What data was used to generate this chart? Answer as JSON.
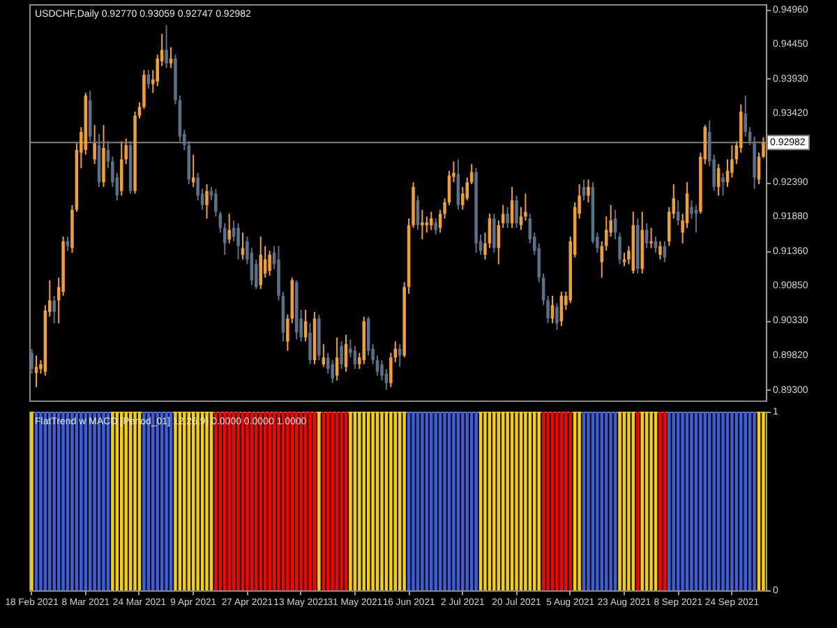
{
  "chart_data": [
    {
      "type": "candlestick",
      "title": "USDCHF,Daily  0.92770 0.93059 0.92747 0.92982",
      "categories": [
        null,
        null,
        null,
        null,
        null,
        null,
        null,
        null,
        null,
        null,
        null,
        null,
        null,
        null,
        null,
        null,
        null,
        null,
        null,
        null,
        null,
        null,
        null,
        null,
        null,
        null,
        null,
        null,
        null,
        null,
        null,
        null,
        null,
        null,
        null,
        null,
        null,
        null,
        null,
        null,
        null,
        null,
        null,
        null,
        null,
        null,
        null,
        null,
        null,
        null,
        null,
        null,
        null,
        null,
        null,
        null,
        null,
        null,
        null,
        null,
        null,
        null,
        null,
        null,
        null,
        null,
        null,
        null,
        null,
        null,
        null,
        null,
        null,
        null,
        null,
        null,
        null,
        null,
        null,
        null,
        null,
        null,
        null,
        null,
        null,
        null,
        null,
        null,
        null,
        null,
        null,
        null,
        null,
        null,
        null,
        null,
        null,
        null,
        null,
        null,
        null,
        null,
        null,
        null,
        null,
        null,
        null,
        null,
        null,
        null,
        null,
        null,
        null,
        null,
        null,
        null,
        null,
        null,
        null,
        null,
        null,
        null,
        null,
        null,
        null,
        null,
        null,
        null,
        null,
        null,
        null,
        null,
        null,
        null,
        null,
        null,
        null,
        null,
        null,
        null,
        null,
        null,
        null,
        null,
        null,
        null,
        null,
        null,
        null,
        null,
        null,
        null,
        null,
        null,
        null,
        null,
        null,
        null,
        null,
        null,
        null,
        null,
        null,
        null
      ],
      "ohlc": [
        [
          0.8985,
          0.8991,
          0.8954,
          0.8961
        ],
        [
          0.8955,
          0.8981,
          0.8934,
          0.8964
        ],
        [
          0.8961,
          0.8974,
          0.8954,
          0.8968
        ],
        [
          0.8957,
          0.9056,
          0.8951,
          0.9048
        ],
        [
          0.9046,
          0.9093,
          0.9039,
          0.9063
        ],
        [
          0.9063,
          0.907,
          0.9029,
          0.9046
        ],
        [
          0.9063,
          0.9097,
          0.9029,
          0.9083
        ],
        [
          0.9076,
          0.9158,
          0.907,
          0.9151
        ],
        [
          0.9151,
          0.9158,
          0.9137,
          0.9144
        ],
        [
          0.9141,
          0.9205,
          0.9134,
          0.9198
        ],
        [
          0.9198,
          0.9297,
          0.9195,
          0.9287
        ],
        [
          0.9283,
          0.9321,
          0.926,
          0.9314
        ],
        [
          0.9287,
          0.9372,
          0.928,
          0.9368
        ],
        [
          0.9361,
          0.9375,
          0.93,
          0.9307
        ],
        [
          0.9273,
          0.9324,
          0.9266,
          0.9297
        ],
        [
          0.9294,
          0.9311,
          0.9232,
          0.9239
        ],
        [
          0.9239,
          0.9324,
          0.9232,
          0.929
        ],
        [
          0.9287,
          0.93,
          0.926,
          0.927
        ],
        [
          0.927,
          0.9277,
          0.9232,
          0.9239
        ],
        [
          0.9246,
          0.9253,
          0.9212,
          0.9219
        ],
        [
          0.9226,
          0.93,
          0.9219,
          0.9273
        ],
        [
          0.9273,
          0.9304,
          0.9266,
          0.9294
        ],
        [
          0.9294,
          0.93,
          0.9222,
          0.9226
        ],
        [
          0.9226,
          0.9344,
          0.9222,
          0.9338
        ],
        [
          0.9338,
          0.9358,
          0.9334,
          0.9351
        ],
        [
          0.9351,
          0.9406,
          0.9348,
          0.9399
        ],
        [
          0.9399,
          0.9406,
          0.9378,
          0.9385
        ],
        [
          0.9385,
          0.9406,
          0.9372,
          0.9392
        ],
        [
          0.9389,
          0.9429,
          0.9382,
          0.9423
        ],
        [
          0.9419,
          0.946,
          0.9412,
          0.9436
        ],
        [
          0.9436,
          0.9473,
          0.9409,
          0.9416
        ],
        [
          0.9416,
          0.944,
          0.9409,
          0.9423
        ],
        [
          0.9423,
          0.9429,
          0.9355,
          0.9361
        ],
        [
          0.9361,
          0.9368,
          0.93,
          0.9307
        ],
        [
          0.9311,
          0.9317,
          0.9287,
          0.9294
        ],
        [
          0.9294,
          0.93,
          0.9236,
          0.9243
        ],
        [
          0.9239,
          0.928,
          0.9232,
          0.9246
        ],
        [
          0.9246,
          0.9253,
          0.9212,
          0.9219
        ],
        [
          0.9222,
          0.9229,
          0.9198,
          0.9205
        ],
        [
          0.9205,
          0.9236,
          0.9185,
          0.9226
        ],
        [
          0.9226,
          0.9232,
          0.9212,
          0.9219
        ],
        [
          0.9222,
          0.9229,
          0.9188,
          0.9195
        ],
        [
          0.9192,
          0.9195,
          0.9164,
          0.9171
        ],
        [
          0.9171,
          0.9178,
          0.9131,
          0.9148
        ],
        [
          0.9154,
          0.9192,
          0.9148,
          0.9168
        ],
        [
          0.9171,
          0.9182,
          0.9151,
          0.9158
        ],
        [
          0.9171,
          0.9178,
          0.9124,
          0.9144
        ],
        [
          0.9131,
          0.9164,
          0.9124,
          0.9141
        ],
        [
          0.9151,
          0.9158,
          0.9117,
          0.9124
        ],
        [
          0.9134,
          0.9141,
          0.9086,
          0.9093
        ],
        [
          0.9117,
          0.9124,
          0.908,
          0.9083
        ],
        [
          0.9086,
          0.9158,
          0.908,
          0.9131
        ],
        [
          0.9103,
          0.9144,
          0.9097,
          0.9124
        ],
        [
          0.9107,
          0.9137,
          0.91,
          0.9131
        ],
        [
          0.9134,
          0.9144,
          0.911,
          0.9117
        ],
        [
          0.9124,
          0.9144,
          0.9063,
          0.907
        ],
        [
          0.907,
          0.9076,
          0.9002,
          0.9015
        ],
        [
          0.9002,
          0.9042,
          0.8988,
          0.9036
        ],
        [
          0.9036,
          0.9097,
          0.9029,
          0.9093
        ],
        [
          0.909,
          0.9093,
          0.9005,
          0.9015
        ],
        [
          0.9036,
          0.9049,
          0.9002,
          0.9008
        ],
        [
          0.9008,
          0.9049,
          0.9002,
          0.9032
        ],
        [
          0.9015,
          0.9029,
          0.8968,
          0.8974
        ],
        [
          0.8974,
          0.9046,
          0.8968,
          0.9036
        ],
        [
          0.9036,
          0.9042,
          0.8974,
          0.8981
        ],
        [
          0.8968,
          0.8998,
          0.8964,
          0.8978
        ],
        [
          0.8978,
          0.8985,
          0.8954,
          0.8961
        ],
        [
          0.8968,
          0.8974,
          0.894,
          0.8947
        ],
        [
          0.8951,
          0.9008,
          0.8944,
          0.8978
        ],
        [
          0.8995,
          0.9002,
          0.8961,
          0.8968
        ],
        [
          0.8964,
          0.9012,
          0.8957,
          0.8998
        ],
        [
          0.8991,
          0.9005,
          0.8978,
          0.8985
        ],
        [
          0.8988,
          0.8995,
          0.8961,
          0.8968
        ],
        [
          0.8968,
          0.8985,
          0.8961,
          0.8978
        ],
        [
          0.8974,
          0.9039,
          0.8968,
          0.9032
        ],
        [
          0.9036,
          0.9039,
          0.8981,
          0.8988
        ],
        [
          0.8991,
          0.8998,
          0.8968,
          0.8974
        ],
        [
          0.8974,
          0.8981,
          0.8951,
          0.8957
        ],
        [
          0.8968,
          0.8974,
          0.8944,
          0.8951
        ],
        [
          0.8954,
          0.8961,
          0.893,
          0.894
        ],
        [
          0.894,
          0.8985,
          0.8934,
          0.8978
        ],
        [
          0.8978,
          0.9002,
          0.8971,
          0.8991
        ],
        [
          0.8991,
          0.8998,
          0.8964,
          0.8981
        ],
        [
          0.8981,
          0.909,
          0.8978,
          0.9083
        ],
        [
          0.9083,
          0.9185,
          0.9073,
          0.9175
        ],
        [
          0.9175,
          0.9239,
          0.9171,
          0.9232
        ],
        [
          0.9212,
          0.9219,
          0.9168,
          0.9175
        ],
        [
          0.9175,
          0.9198,
          0.9154,
          0.9179
        ],
        [
          0.9175,
          0.9188,
          0.9164,
          0.9179
        ],
        [
          0.9175,
          0.9195,
          0.9168,
          0.9185
        ],
        [
          0.9179,
          0.9185,
          0.9161,
          0.9168
        ],
        [
          0.9171,
          0.9198,
          0.9164,
          0.9192
        ],
        [
          0.9192,
          0.9215,
          0.9185,
          0.9209
        ],
        [
          0.9209,
          0.9256,
          0.9205,
          0.9249
        ],
        [
          0.9247,
          0.927,
          0.9239,
          0.9253
        ],
        [
          0.9251,
          0.9273,
          0.9198,
          0.9205
        ],
        [
          0.9205,
          0.9232,
          0.9198,
          0.9222
        ],
        [
          0.9215,
          0.9246,
          0.9212,
          0.9239
        ],
        [
          0.9239,
          0.9266,
          0.9236,
          0.9254
        ],
        [
          0.9254,
          0.926,
          0.9134,
          0.9148
        ],
        [
          0.9151,
          0.9161,
          0.9131,
          0.9137
        ],
        [
          0.9131,
          0.9164,
          0.9124,
          0.9148
        ],
        [
          0.9148,
          0.9192,
          0.9141,
          0.9185
        ],
        [
          0.9185,
          0.9192,
          0.9134,
          0.9141
        ],
        [
          0.9141,
          0.9182,
          0.9117,
          0.9175
        ],
        [
          0.9178,
          0.9205,
          0.9171,
          0.9192
        ],
        [
          0.9192,
          0.9202,
          0.9171,
          0.9178
        ],
        [
          0.9178,
          0.9232,
          0.9171,
          0.9212
        ],
        [
          0.9212,
          0.9219,
          0.9171,
          0.9178
        ],
        [
          0.9175,
          0.9202,
          0.9168,
          0.9188
        ],
        [
          0.9188,
          0.9222,
          0.9182,
          0.9195
        ],
        [
          0.9185,
          0.9192,
          0.9148,
          0.9154
        ],
        [
          0.9158,
          0.9164,
          0.9131,
          0.9137
        ],
        [
          0.9141,
          0.9148,
          0.909,
          0.9097
        ],
        [
          0.9097,
          0.9103,
          0.9056,
          0.9063
        ],
        [
          0.9063,
          0.907,
          0.9029,
          0.9036
        ],
        [
          0.9036,
          0.907,
          0.9029,
          0.9056
        ],
        [
          0.9053,
          0.9059,
          0.9019,
          0.9029
        ],
        [
          0.9032,
          0.9076,
          0.9025,
          0.907
        ],
        [
          0.9056,
          0.9076,
          0.9049,
          0.907
        ],
        [
          0.9063,
          0.9158,
          0.9059,
          0.9151
        ],
        [
          0.9131,
          0.9209,
          0.9127,
          0.9202
        ],
        [
          0.9192,
          0.9236,
          0.9185,
          0.9219
        ],
        [
          0.9232,
          0.9243,
          0.9212,
          0.9219
        ],
        [
          0.9219,
          0.9243,
          0.9209,
          0.9232
        ],
        [
          0.9232,
          0.9239,
          0.9148,
          0.9151
        ],
        [
          0.9158,
          0.9164,
          0.9134,
          0.9141
        ],
        [
          0.912,
          0.9151,
          0.9097,
          0.9144
        ],
        [
          0.9144,
          0.9188,
          0.9137,
          0.9168
        ],
        [
          0.9164,
          0.9205,
          0.9158,
          0.9182
        ],
        [
          0.9185,
          0.9198,
          0.9154,
          0.9164
        ],
        [
          0.9158,
          0.9164,
          0.9117,
          0.9124
        ],
        [
          0.912,
          0.9134,
          0.9114,
          0.9124
        ],
        [
          0.9124,
          0.9144,
          0.9117,
          0.9137
        ],
        [
          0.9107,
          0.9195,
          0.9103,
          0.9175
        ],
        [
          0.9175,
          0.9185,
          0.9103,
          0.911
        ],
        [
          0.911,
          0.9195,
          0.9103,
          0.9168
        ],
        [
          0.9168,
          0.9178,
          0.9141,
          0.9148
        ],
        [
          0.9148,
          0.9171,
          0.9141,
          0.9151
        ],
        [
          0.9151,
          0.9158,
          0.9134,
          0.9141
        ],
        [
          0.9131,
          0.9151,
          0.9124,
          0.9144
        ],
        [
          0.9144,
          0.9151,
          0.912,
          0.9127
        ],
        [
          0.9151,
          0.9202,
          0.9144,
          0.9195
        ],
        [
          0.9192,
          0.9236,
          0.9185,
          0.9215
        ],
        [
          0.9195,
          0.9212,
          0.9175,
          0.9182
        ],
        [
          0.9164,
          0.9192,
          0.9148,
          0.9182
        ],
        [
          0.9178,
          0.9239,
          0.9171,
          0.9222
        ],
        [
          0.9202,
          0.9212,
          0.9185,
          0.9192
        ],
        [
          0.9198,
          0.9205,
          0.9164,
          0.9192
        ],
        [
          0.9195,
          0.9283,
          0.9192,
          0.9277
        ],
        [
          0.9273,
          0.9324,
          0.9266,
          0.9321
        ],
        [
          0.9314,
          0.9331,
          0.9263,
          0.927
        ],
        [
          0.9273,
          0.928,
          0.9226,
          0.9232
        ],
        [
          0.9232,
          0.9266,
          0.9219,
          0.926
        ],
        [
          0.9246,
          0.9253,
          0.9219,
          0.9239
        ],
        [
          0.9239,
          0.9273,
          0.9232,
          0.9256
        ],
        [
          0.9253,
          0.9294,
          0.9246,
          0.9273
        ],
        [
          0.9273,
          0.93,
          0.9266,
          0.9294
        ],
        [
          0.929,
          0.9355,
          0.9283,
          0.9344
        ],
        [
          0.9341,
          0.9368,
          0.9307,
          0.9314
        ],
        [
          0.9314,
          0.9321,
          0.9294,
          0.93
        ],
        [
          0.93,
          0.9307,
          0.9229,
          0.9246
        ],
        [
          0.9243,
          0.9283,
          0.9236,
          0.9277
        ],
        [
          0.9277,
          0.9306,
          0.9275,
          0.9298
        ]
      ],
      "colors": [
        "#5b7089",
        "#f0a030",
        "#f0a030",
        "#f0a030",
        "#f0a030",
        "#5b7089",
        "#f0a030",
        "#f0a030",
        "#5b7089",
        "#f0a030",
        "#f0a030",
        "#f0a030",
        "#f0a030",
        "#5b7089",
        "#f0a030",
        "#5b7089",
        "#f0a030",
        "#5b7089",
        "#5b7089",
        "#5b7089",
        "#f0a030",
        "#f0a030",
        "#5b7089",
        "#f0a030",
        "#f0a030",
        "#f0a030",
        "#5b7089",
        "#f0a030",
        "#f0a030",
        "#f0a030",
        "#5b7089",
        "#f0a030",
        "#5b7089",
        "#5b7089",
        "#5b7089",
        "#5b7089",
        "#f0a030",
        "#5b7089",
        "#5b7089",
        "#f0a030",
        "#5b7089",
        "#5b7089",
        "#5b7089",
        "#5b7089",
        "#f0a030",
        "#5b7089",
        "#5b7089",
        "#f0a030",
        "#5b7089",
        "#5b7089",
        "#5b7089",
        "#f0a030",
        "#f0a030",
        "#f0a030",
        "#5b7089",
        "#5b7089",
        "#5b7089",
        "#f0a030",
        "#f0a030",
        "#5b7089",
        "#5b7089",
        "#f0a030",
        "#5b7089",
        "#f0a030",
        "#5b7089",
        "#f0a030",
        "#5b7089",
        "#5b7089",
        "#f0a030",
        "#5b7089",
        "#f0a030",
        "#5b7089",
        "#5b7089",
        "#f0a030",
        "#f0a030",
        "#5b7089",
        "#5b7089",
        "#5b7089",
        "#5b7089",
        "#5b7089",
        "#f0a030",
        "#f0a030",
        "#5b7089",
        "#f0a030",
        "#f0a030",
        "#f0a030",
        "#5b7089",
        "#f0a030",
        "#f0a030",
        "#f0a030",
        "#5b7089",
        "#f0a030",
        "#f0a030",
        "#f0a030",
        "#f0a030",
        "#5b7089",
        "#f0a030",
        "#f0a030",
        "#f0a030",
        "#5b7089",
        "#5b7089",
        "#f0a030",
        "#f0a030",
        "#5b7089",
        "#f0a030",
        "#f0a030",
        "#5b7089",
        "#f0a030",
        "#5b7089",
        "#f0a030",
        "#f0a030",
        "#5b7089",
        "#5b7089",
        "#5b7089",
        "#5b7089",
        "#5b7089",
        "#f0a030",
        "#5b7089",
        "#f0a030",
        "#f0a030",
        "#f0a030",
        "#f0a030",
        "#f0a030",
        "#5b7089",
        "#f0a030",
        "#5b7089",
        "#5b7089",
        "#f0a030",
        "#f0a030",
        "#f0a030",
        "#5b7089",
        "#5b7089",
        "#f0a030",
        "#f0a030",
        "#f0a030",
        "#5b7089",
        "#f0a030",
        "#5b7089",
        "#f0a030",
        "#5b7089",
        "#f0a030",
        "#5b7089",
        "#f0a030",
        "#f0a030",
        "#5b7089",
        "#f0a030",
        "#f0a030",
        "#5b7089",
        "#5b7089",
        "#f0a030",
        "#f0a030",
        "#5b7089",
        "#5b7089",
        "#f0a030",
        "#5b7089",
        "#f0a030",
        "#f0a030",
        "#f0a030",
        "#f0a030",
        "#5b7089",
        "#5b7089",
        "#5b7089",
        "#f0a030",
        "#f0a030"
      ],
      "ylim": [
        0.8914,
        0.9504
      ],
      "yticks": [
        {
          "value": 0.893,
          "label": "0.89300"
        },
        {
          "value": 0.8982,
          "label": "0.89820"
        },
        {
          "value": 0.9033,
          "label": "0.90330"
        },
        {
          "value": 0.9085,
          "label": "0.90850"
        },
        {
          "value": 0.9136,
          "label": "0.91360"
        },
        {
          "value": 0.9188,
          "label": "0.91880"
        },
        {
          "value": 0.9239,
          "label": "0.92390"
        },
        {
          "value": 0.9342,
          "label": "0.93420"
        },
        {
          "value": 0.9393,
          "label": "0.93930"
        },
        {
          "value": 0.9445,
          "label": "0.94450"
        },
        {
          "value": 0.9496,
          "label": "0.94960"
        }
      ],
      "ref_lines": [
        {
          "axis": "y",
          "value": 0.92982,
          "label": "0.92982",
          "color": "#7f7f7f"
        }
      ],
      "tick_labels": "y"
    },
    {
      "type": "bar",
      "title": "FlatTrend w MACD [Period_01] 12,26,9) 0.0000 0.0000 1.0000",
      "categories": [
        "18 Feb 2021",
        null,
        null,
        null,
        null,
        null,
        null,
        null,
        null,
        null,
        null,
        null,
        "8 Mar 2021",
        null,
        null,
        null,
        null,
        null,
        null,
        null,
        null,
        null,
        null,
        null,
        "24 Mar 2021",
        null,
        null,
        null,
        null,
        null,
        null,
        null,
        null,
        null,
        null,
        null,
        "9 Apr 2021",
        null,
        null,
        null,
        null,
        null,
        null,
        null,
        null,
        null,
        null,
        null,
        "27 Apr 2021",
        null,
        null,
        null,
        null,
        null,
        null,
        null,
        null,
        null,
        null,
        null,
        "13 May 2021",
        null,
        null,
        null,
        null,
        null,
        null,
        null,
        null,
        null,
        null,
        null,
        "31 May 2021",
        null,
        null,
        null,
        null,
        null,
        null,
        null,
        null,
        null,
        null,
        null,
        "16 Jun 2021",
        null,
        null,
        null,
        null,
        null,
        null,
        null,
        null,
        null,
        null,
        null,
        "2 Jul 2021",
        null,
        null,
        null,
        null,
        null,
        null,
        null,
        null,
        null,
        null,
        null,
        "20 Jul 2021",
        null,
        null,
        null,
        null,
        null,
        null,
        null,
        null,
        null,
        null,
        null,
        "5 Aug 2021",
        null,
        null,
        null,
        null,
        null,
        null,
        null,
        null,
        null,
        null,
        null,
        "23 Aug 2021",
        null,
        null,
        null,
        null,
        null,
        null,
        null,
        null,
        null,
        null,
        null,
        "8 Sep 2021",
        null,
        null,
        null,
        null,
        null,
        null,
        null,
        null,
        null,
        null,
        null,
        "24 Sep 2021",
        null,
        null,
        null,
        null,
        null,
        null,
        null
      ],
      "values": [
        1,
        1,
        1,
        1,
        1,
        1,
        1,
        1,
        1,
        1,
        1,
        1,
        1,
        1,
        1,
        1,
        1,
        1,
        1,
        1,
        1,
        1,
        1,
        1,
        1,
        1,
        1,
        1,
        1,
        1,
        1,
        1,
        1,
        1,
        1,
        1,
        1,
        1,
        1,
        1,
        1,
        1,
        1,
        1,
        1,
        1,
        1,
        1,
        1,
        1,
        1,
        1,
        1,
        1,
        1,
        1,
        1,
        1,
        1,
        1,
        1,
        1,
        1,
        1,
        1,
        1,
        1,
        1,
        1,
        1,
        1,
        1,
        1,
        1,
        1,
        1,
        1,
        1,
        1,
        1,
        1,
        1,
        1,
        1,
        1,
        1,
        1,
        1,
        1,
        1,
        1,
        1,
        1,
        1,
        1,
        1,
        1,
        1,
        1,
        1,
        1,
        1,
        1,
        1,
        1,
        1,
        1,
        1,
        1,
        1,
        1,
        1,
        1,
        1,
        1,
        1,
        1,
        1,
        1,
        1,
        1,
        1,
        1,
        1,
        1,
        1,
        1,
        1,
        1,
        1,
        1,
        1,
        1,
        1,
        1,
        1,
        1,
        1,
        1,
        1,
        1,
        1,
        1,
        1,
        1,
        1,
        1,
        1,
        1,
        1,
        1,
        1,
        1,
        1,
        1,
        1,
        1,
        1,
        1,
        1,
        1,
        1,
        1,
        1
      ],
      "colors": [
        "#f5d000",
        "#3b5fd9",
        "#3b5fd9",
        "#3b5fd9",
        "#3b5fd9",
        "#3b5fd9",
        "#3b5fd9",
        "#3b5fd9",
        "#3b5fd9",
        "#3b5fd9",
        "#3b5fd9",
        "#3b5fd9",
        "#3b5fd9",
        "#3b5fd9",
        "#3b5fd9",
        "#3b5fd9",
        "#3b5fd9",
        "#3b5fd9",
        "#f5d000",
        "#f5d000",
        "#f5d000",
        "#f5d000",
        "#f5d000",
        "#f5d000",
        "#f5d000",
        "#3b5fd9",
        "#3b5fd9",
        "#3b5fd9",
        "#3b5fd9",
        "#3b5fd9",
        "#3b5fd9",
        "#3b5fd9",
        "#f5d000",
        "#f5d000",
        "#f5d000",
        "#f5d000",
        "#f5d000",
        "#f5d000",
        "#f5d000",
        "#f5d000",
        "#f5d000",
        "#ff0000",
        "#ff0000",
        "#ff0000",
        "#ff0000",
        "#ff0000",
        "#ff0000",
        "#ff0000",
        "#ff0000",
        "#ff0000",
        "#ff0000",
        "#ff0000",
        "#ff0000",
        "#ff0000",
        "#ff0000",
        "#ff0000",
        "#ff0000",
        "#ff0000",
        "#ff0000",
        "#ff0000",
        "#ff0000",
        "#ff0000",
        "#ff0000",
        "#ff0000",
        "#f5d000",
        "#ff0000",
        "#ff0000",
        "#ff0000",
        "#ff0000",
        "#ff0000",
        "#ff0000",
        "#f5d000",
        "#f5d000",
        "#f5d000",
        "#f5d000",
        "#f5d000",
        "#f5d000",
        "#f5d000",
        "#f5d000",
        "#f5d000",
        "#f5d000",
        "#f5d000",
        "#f5d000",
        "#f5d000",
        "#3b5fd9",
        "#3b5fd9",
        "#3b5fd9",
        "#3b5fd9",
        "#3b5fd9",
        "#3b5fd9",
        "#3b5fd9",
        "#3b5fd9",
        "#3b5fd9",
        "#3b5fd9",
        "#3b5fd9",
        "#3b5fd9",
        "#3b5fd9",
        "#3b5fd9",
        "#3b5fd9",
        "#3b5fd9",
        "#f5d000",
        "#f5d000",
        "#f5d000",
        "#f5d000",
        "#f5d000",
        "#f5d000",
        "#f5d000",
        "#f5d000",
        "#f5d000",
        "#f5d000",
        "#f5d000",
        "#f5d000",
        "#f5d000",
        "#f5d000",
        "#ff0000",
        "#ff0000",
        "#ff0000",
        "#ff0000",
        "#ff0000",
        "#ff0000",
        "#ff0000",
        "#f5d000",
        "#f5d000",
        "#3b5fd9",
        "#3b5fd9",
        "#3b5fd9",
        "#3b5fd9",
        "#3b5fd9",
        "#3b5fd9",
        "#3b5fd9",
        "#3b5fd9",
        "#f5d000",
        "#f5d000",
        "#f5d000",
        "#f5d000",
        "#ff0000",
        "#f5d000",
        "#f5d000",
        "#f5d000",
        "#f5d000",
        "#ff0000",
        "#ff0000",
        "#3b5fd9",
        "#3b5fd9",
        "#3b5fd9",
        "#3b5fd9",
        "#3b5fd9",
        "#3b5fd9",
        "#3b5fd9",
        "#3b5fd9",
        "#3b5fd9",
        "#3b5fd9",
        "#3b5fd9",
        "#3b5fd9",
        "#3b5fd9",
        "#3b5fd9",
        "#3b5fd9",
        "#3b5fd9",
        "#3b5fd9",
        "#3b5fd9",
        "#3b5fd9",
        "#3b5fd9",
        "#f5d000",
        "#f5d000"
      ],
      "ylim": [
        0,
        1
      ],
      "yticks": [
        0,
        1
      ]
    }
  ]
}
